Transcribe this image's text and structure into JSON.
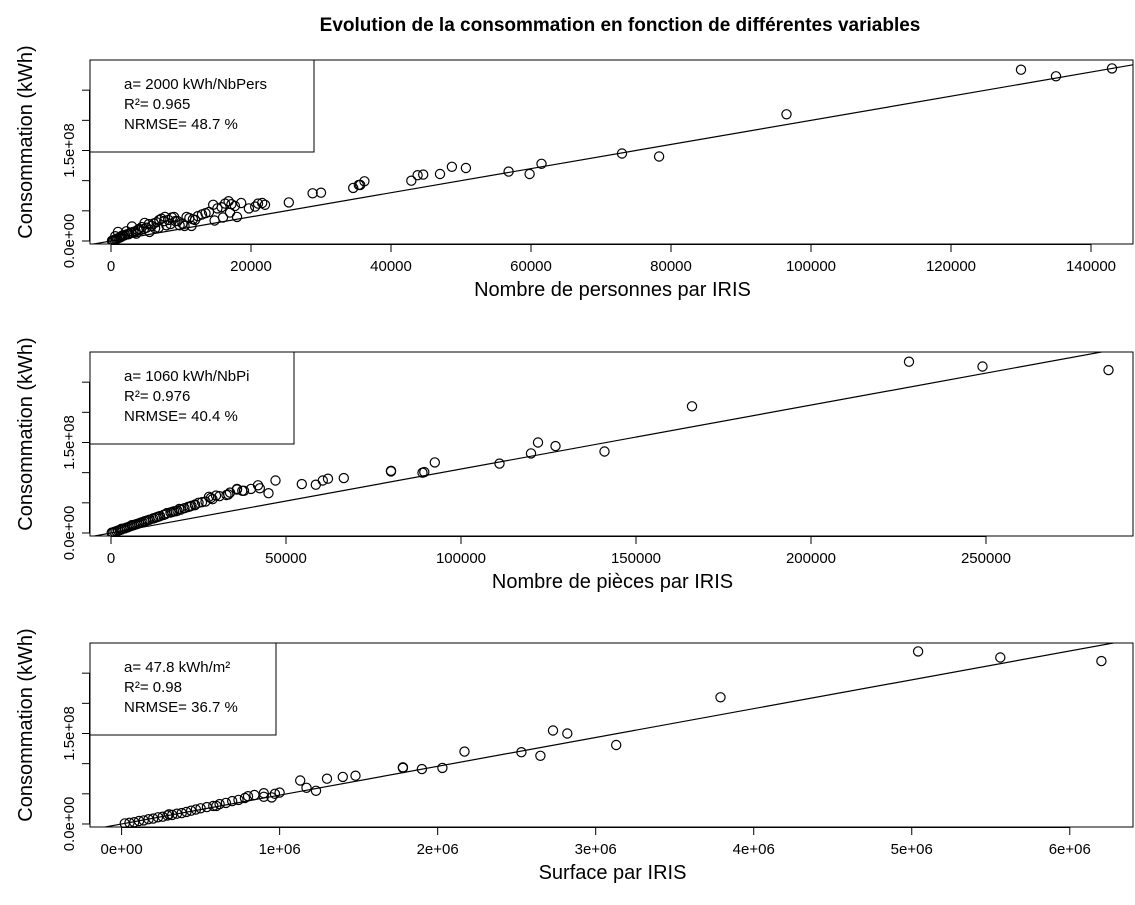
{
  "figure": {
    "title": "Evolution de la consommation en fonction de différentes variables"
  },
  "chart_data": [
    {
      "type": "scatter",
      "xlabel": "Nombre de personnes par IRIS",
      "ylabel": "Consommation (kWh)",
      "xlim": [
        -3000,
        146000
      ],
      "ylim": [
        -5000000,
        300000000
      ],
      "x_ticks": [
        0,
        20000,
        40000,
        60000,
        80000,
        100000,
        120000,
        140000
      ],
      "x_tick_labels": [
        "0",
        "20000",
        "40000",
        "60000",
        "80000",
        "100000",
        "120000",
        "140000"
      ],
      "y_ticks": [
        0,
        50000000,
        100000000,
        150000000,
        200000000,
        250000000
      ],
      "y_tick_labels": [
        "0.0e+00",
        "",
        "",
        "1.5e+08",
        "",
        ""
      ],
      "legend": {
        "position": "top-left",
        "lines": [
          "a= 2000 kWh/NbPers",
          "R²= 0.965",
          "NRMSE= 48.7 %"
        ]
      },
      "fit_line": {
        "slope": 2000,
        "intercept": 0
      },
      "points": {
        "x": [
          143000,
          130000,
          135000,
          96500,
          73000,
          78300,
          61500,
          56800,
          59800,
          48700,
          50700,
          47000,
          44600,
          43800,
          42900,
          36200,
          35600,
          35400,
          34600,
          28800,
          30000,
          25400,
          22000,
          21600,
          21000,
          20600,
          19700,
          18600,
          17700,
          17200,
          16800,
          16300,
          15800,
          15200,
          14600,
          14000,
          13500,
          13000,
          12400,
          11700,
          11200,
          10800,
          10200,
          9800,
          9500,
          9000,
          8700,
          8200,
          7600,
          7200,
          6900,
          6500,
          6100,
          5800,
          5400,
          5100,
          4700,
          4400,
          4000,
          3800,
          3500,
          3200,
          2900,
          2600,
          2300,
          2000,
          1800,
          1500,
          1300,
          1100,
          900,
          700,
          500,
          300,
          150,
          2200,
          4800,
          7700,
          9200,
          11500,
          16000,
          3000,
          5500,
          6800,
          12000,
          17000,
          1000,
          2500,
          4200,
          8500,
          10500,
          14800,
          18000,
          600,
          1600,
          3600,
          6300,
          7900
        ],
        "y": [
          286000000,
          284000000,
          273000000,
          210000000,
          145000000,
          140000000,
          128000000,
          115000000,
          111000000,
          123000000,
          121000000,
          111000000,
          110000000,
          109000000,
          100000000,
          99000000,
          93000000,
          93000000,
          88000000,
          79000000,
          80000000,
          64000000,
          60000000,
          63000000,
          62000000,
          57000000,
          54000000,
          63000000,
          58000000,
          61000000,
          66000000,
          62000000,
          56000000,
          54000000,
          60000000,
          48000000,
          46000000,
          44000000,
          41000000,
          36000000,
          38000000,
          40000000,
          29000000,
          26000000,
          33000000,
          40000000,
          39000000,
          35000000,
          33000000,
          37000000,
          35000000,
          31000000,
          29000000,
          25000000,
          28000000,
          22000000,
          20000000,
          23000000,
          20000000,
          18000000,
          16000000,
          15000000,
          14000000,
          12000000,
          11000000,
          10000000,
          9000000,
          7000000,
          6000000,
          5000000,
          4000000,
          3000000,
          2000000,
          1000000,
          500000,
          16000000,
          30000000,
          40000000,
          33000000,
          25000000,
          39000000,
          24000000,
          15000000,
          22000000,
          35000000,
          47000000,
          15000000,
          11000000,
          18000000,
          28000000,
          25000000,
          34000000,
          40000000,
          8000000,
          9000000,
          12000000,
          21000000,
          26000000
        ]
      }
    },
    {
      "type": "scatter",
      "xlabel": "Nombre de pièces par IRIS",
      "ylabel": "Consommation (kWh)",
      "xlim": [
        -6000,
        292000
      ],
      "ylim": [
        -5000000,
        300000000
      ],
      "x_ticks": [
        0,
        50000,
        100000,
        150000,
        200000,
        250000
      ],
      "x_tick_labels": [
        "0",
        "50000",
        "100000",
        "150000",
        "200000",
        "250000"
      ],
      "y_ticks": [
        0,
        50000000,
        100000000,
        150000000,
        200000000,
        250000000
      ],
      "y_tick_labels": [
        "0.0e+00",
        "",
        "",
        "1.5e+08",
        "",
        ""
      ],
      "legend": {
        "position": "top-left",
        "lines": [
          "a= 1060 kWh/NbPi",
          "R²= 0.976",
          "NRMSE= 40.4 %"
        ]
      },
      "fit_line": {
        "slope": 1060,
        "intercept": 0
      },
      "points": {
        "x": [
          228000,
          249000,
          285000,
          166000,
          122000,
          127000,
          141000,
          120000,
          111000,
          92500,
          89500,
          89000,
          80000,
          80000,
          66500,
          62000,
          60500,
          58500,
          54500,
          47000,
          45000,
          42500,
          42000,
          40000,
          38000,
          36000,
          36000,
          34000,
          33000,
          31000,
          30000,
          28500,
          28000,
          27000,
          26000,
          25000,
          24000,
          23000,
          22500,
          22000,
          21000,
          20000,
          19500,
          19000,
          18000,
          17500,
          17000,
          16000,
          15500,
          15000,
          14000,
          13000,
          12500,
          12000,
          11000,
          10500,
          10000,
          9500,
          9000,
          8500,
          8000,
          7500,
          7000,
          6500,
          6000,
          5500,
          5000,
          4500,
          4000,
          3500,
          3000,
          2500,
          2000,
          1500,
          1000,
          500,
          200,
          3000,
          6000,
          9500,
          13500,
          18500,
          24000,
          29000,
          33500,
          37500
        ],
        "y": [
          284000000,
          276000000,
          270000000,
          210000000,
          150000000,
          144000000,
          135000000,
          132000000,
          115000000,
          117000000,
          101000000,
          100000000,
          103000000,
          102000000,
          91000000,
          90000000,
          87000000,
          80000000,
          81000000,
          87000000,
          66000000,
          74000000,
          79000000,
          73000000,
          70000000,
          73000000,
          72000000,
          67000000,
          63000000,
          61000000,
          62000000,
          58000000,
          60000000,
          52000000,
          51000000,
          50000000,
          47000000,
          45000000,
          44000000,
          43000000,
          41000000,
          39000000,
          40000000,
          37000000,
          36000000,
          35000000,
          34000000,
          33000000,
          31000000,
          30000000,
          28000000,
          26000000,
          25000000,
          24000000,
          22000000,
          21000000,
          20000000,
          19000000,
          18000000,
          17000000,
          16000000,
          15000000,
          14000000,
          13000000,
          12000000,
          11000000,
          10000000,
          9000000,
          8000000,
          7000000,
          6000000,
          5000000,
          4000000,
          3000000,
          2000000,
          1000000,
          500000,
          7000000,
          13000000,
          19000000,
          27000000,
          36000000,
          46000000,
          56000000,
          64000000,
          70000000
        ]
      }
    },
    {
      "type": "scatter",
      "xlabel": "Surface par IRIS",
      "ylabel": "Consommation (kWh)",
      "xlim": [
        -200000,
        6400000
      ],
      "ylim": [
        -5000000,
        300000000
      ],
      "x_ticks": [
        0,
        1000000,
        2000000,
        3000000,
        4000000,
        5000000,
        6000000
      ],
      "x_tick_labels": [
        "0e+00",
        "1e+06",
        "2e+06",
        "3e+06",
        "4e+06",
        "5e+06",
        "6e+06"
      ],
      "y_ticks": [
        0,
        50000000,
        100000000,
        150000000,
        200000000,
        250000000
      ],
      "y_tick_labels": [
        "0.0e+00",
        "",
        "",
        "1.5e+08",
        "",
        ""
      ],
      "legend": {
        "position": "top-left",
        "lines": [
          "a= 47.8 kWh/m²",
          "R²= 0.98",
          "NRMSE= 36.7 %"
        ]
      },
      "fit_line": {
        "slope": 47.8,
        "intercept": 0
      },
      "points": {
        "x": [
          5040000,
          5560000,
          6200000,
          3790000,
          2730000,
          2820000,
          3130000,
          2530000,
          2650000,
          2170000,
          2030000,
          1900000,
          1780000,
          1780000,
          1480000,
          1400000,
          1300000,
          1230000,
          1170000,
          1130000,
          1000000,
          970000,
          950000,
          900000,
          840000,
          800000,
          780000,
          740000,
          700000,
          660000,
          620000,
          580000,
          540000,
          500000,
          470000,
          440000,
          410000,
          380000,
          350000,
          320000,
          290000,
          260000,
          230000,
          200000,
          170000,
          140000,
          110000,
          80000,
          50000,
          20000,
          300000,
          600000,
          900000
        ],
        "y": [
          286000000,
          276000000,
          270000000,
          210000000,
          155000000,
          150000000,
          131000000,
          119000000,
          113000000,
          120000000,
          93000000,
          91000000,
          94000000,
          93000000,
          80000000,
          78000000,
          75000000,
          55000000,
          60000000,
          72000000,
          52000000,
          50000000,
          44000000,
          51000000,
          48000000,
          46000000,
          43000000,
          40000000,
          38000000,
          35000000,
          33000000,
          30000000,
          28000000,
          26000000,
          24000000,
          22000000,
          20000000,
          18000000,
          17000000,
          15000000,
          14000000,
          12000000,
          11000000,
          9000000,
          8000000,
          6000000,
          5000000,
          3000000,
          2000000,
          1000000,
          16000000,
          30000000,
          45000000
        ]
      }
    }
  ]
}
